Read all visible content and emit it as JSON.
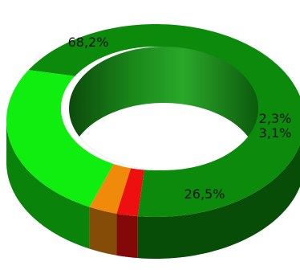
{
  "chart_data": {
    "type": "pie",
    "style": "3d-donut",
    "title": "",
    "slices": [
      {
        "value": 68.2,
        "label": "68,2%",
        "color": "#0c8a0c"
      },
      {
        "value": 26.5,
        "label": "26,5%",
        "color": "#10ee10"
      },
      {
        "value": 3.1,
        "label": "3,1%",
        "color": "#f08a0a"
      },
      {
        "value": 2.3,
        "label": "2,3%",
        "color": "#ee1010"
      }
    ]
  }
}
